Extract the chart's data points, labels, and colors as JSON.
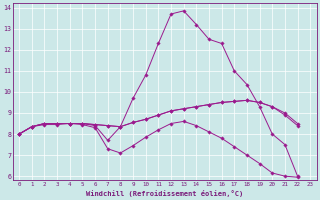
{
  "xlabel": "Windchill (Refroidissement éolien,°C)",
  "background_color": "#cce8e8",
  "grid_color": "#ffffff",
  "line_color": "#9b1b8e",
  "xlim": [
    -0.5,
    23.5
  ],
  "ylim": [
    5.8,
    14.2
  ],
  "xticks": [
    0,
    1,
    2,
    3,
    4,
    5,
    6,
    7,
    8,
    9,
    10,
    11,
    12,
    13,
    14,
    15,
    16,
    17,
    18,
    19,
    20,
    21,
    22,
    23
  ],
  "yticks": [
    6,
    7,
    8,
    9,
    10,
    11,
    12,
    13,
    14
  ],
  "series": [
    [
      8.0,
      8.35,
      8.5,
      8.5,
      8.5,
      8.5,
      8.4,
      7.7,
      8.35,
      9.7,
      10.8,
      12.3,
      13.7,
      13.85,
      13.2,
      12.5,
      12.3,
      11.0,
      10.35,
      9.3,
      8.0,
      7.5,
      6.0
    ],
    [
      8.0,
      8.35,
      8.45,
      8.45,
      8.5,
      8.45,
      8.3,
      7.3,
      7.1,
      7.45,
      7.85,
      8.2,
      8.5,
      8.6,
      8.4,
      8.1,
      7.8,
      7.4,
      7.0,
      6.6,
      6.15,
      6.0,
      5.95
    ],
    [
      8.0,
      8.35,
      8.5,
      8.5,
      8.5,
      8.5,
      8.45,
      8.4,
      8.35,
      8.55,
      8.7,
      8.9,
      9.1,
      9.2,
      9.3,
      9.4,
      9.5,
      9.55,
      9.6,
      9.5,
      9.3,
      9.0,
      8.5
    ],
    [
      8.0,
      8.35,
      8.5,
      8.5,
      8.5,
      8.5,
      8.45,
      8.4,
      8.35,
      8.55,
      8.7,
      8.9,
      9.1,
      9.2,
      9.3,
      9.4,
      9.5,
      9.55,
      9.6,
      9.5,
      9.3,
      8.9,
      8.4
    ]
  ]
}
